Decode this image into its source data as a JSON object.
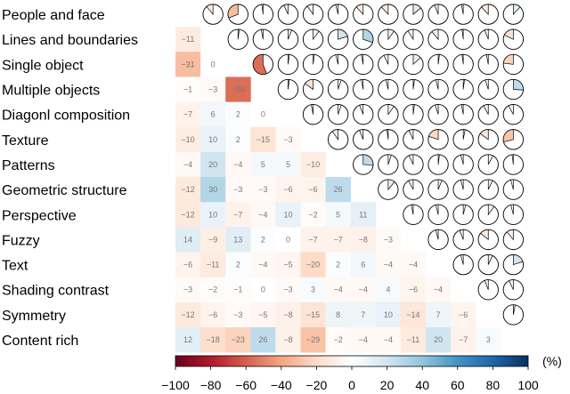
{
  "chart_data": {
    "type": "heatmap",
    "title": "",
    "xlabel": "",
    "ylabel": "",
    "categories": [
      "People and face",
      "Lines and boundaries",
      "Single object",
      "Multiple objects",
      "Diagonl composition",
      "Texture",
      "Patterns",
      "Geometric structure",
      "Perspective",
      "Fuzzy",
      "Text",
      "Shading contrast",
      "Symmetry",
      "Content rich"
    ],
    "lower_triangle_values": [
      [],
      [
        -11
      ],
      [
        -31,
        0
      ],
      [
        -1,
        -3,
        -56
      ],
      [
        -7,
        6,
        2,
        0
      ],
      [
        -10,
        10,
        2,
        -15,
        -3
      ],
      [
        -4,
        20,
        -4,
        5,
        5,
        -10
      ],
      [
        -12,
        30,
        -3,
        -3,
        -6,
        -6,
        26
      ],
      [
        -12,
        10,
        -7,
        -4,
        10,
        -2,
        5,
        11
      ],
      [
        14,
        -9,
        13,
        2,
        0,
        -7,
        -7,
        -8,
        -3
      ],
      [
        -6,
        -11,
        2,
        -4,
        -5,
        -20,
        2,
        6,
        -4,
        -4
      ],
      [
        -3,
        -2,
        -1,
        0,
        -3,
        3,
        -4,
        -4,
        4,
        -6,
        -4
      ],
      [
        -12,
        -6,
        -3,
        -5,
        -8,
        -15,
        8,
        7,
        10,
        -14,
        7,
        -6
      ],
      [
        12,
        -18,
        -23,
        26,
        -8,
        -29,
        -2,
        -4,
        -4,
        -11,
        20,
        -7,
        3
      ]
    ],
    "colorbar": {
      "range": [
        -100,
        100
      ],
      "ticks": [
        "−100",
        "−80",
        "−60",
        "−40",
        "−20",
        "0",
        "20",
        "40",
        "60",
        "80",
        "100"
      ],
      "unit": "(%)",
      "colors": {
        "negative_end": "#67001f",
        "mid": "#ffffff",
        "positive_end": "#053061"
      }
    },
    "upper_triangle": "pie glyphs, wedge size equals the same correlation value, colored by sign"
  }
}
